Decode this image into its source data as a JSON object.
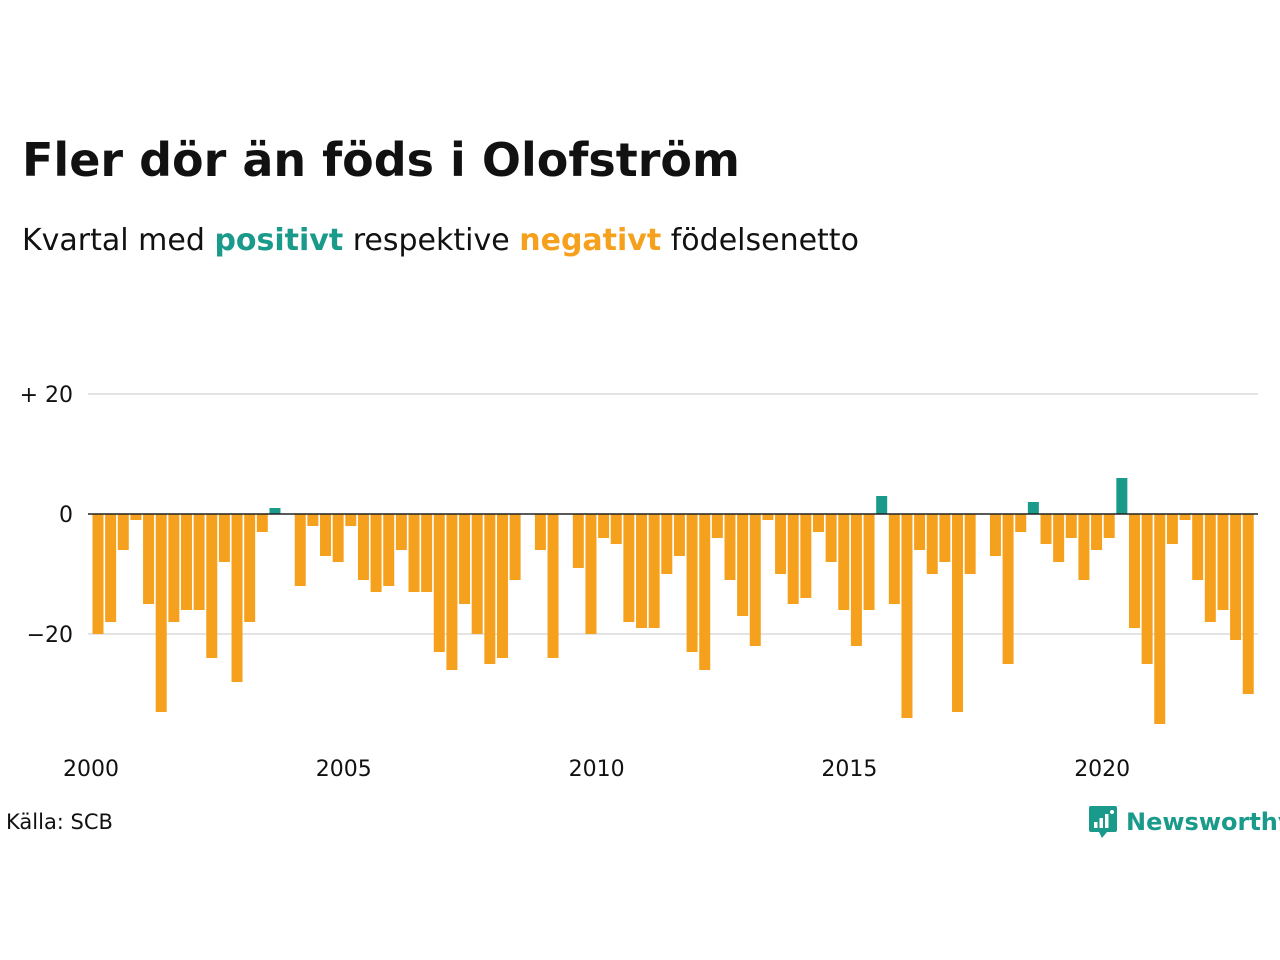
{
  "header": {
    "title": "Fler dör än föds i Olofström",
    "subtitle_prefix": "Kvartal med",
    "subtitle_positive": "positivt",
    "subtitle_mid": "respektive",
    "subtitle_negative": "negativt",
    "subtitle_suffix": "födelsenetto"
  },
  "footer": {
    "source": "Källa: SCB",
    "brand": "Newsworthy",
    "brand_icon": "bar-chart-speech-bubble-icon"
  },
  "colors": {
    "positive": "#1a9a8a",
    "negative": "#f6a11e",
    "text": "#111111",
    "grid": "#e4e4e4",
    "zero_line": "#222222"
  },
  "chart_data": {
    "type": "bar",
    "title": "Fler dör än föds i Olofström",
    "subtitle": "Kvartal med positivt respektive negativt födelsenetto",
    "x_start": "2000-Q1",
    "frequency": "quarterly",
    "x_ticks": [
      "2000",
      "2005",
      "2010",
      "2015",
      "2020"
    ],
    "y_ticks": [
      {
        "value": 20,
        "label": "+ 20"
      },
      {
        "value": 0,
        "label": "0"
      },
      {
        "value": -20,
        "label": "−20"
      }
    ],
    "ylim": [
      -36,
      20
    ],
    "grid": true,
    "series": [
      {
        "values": [
          -20,
          -18,
          -6,
          -1,
          -15,
          -33,
          -18,
          -16,
          -16,
          -24,
          -8,
          -28,
          -18,
          -3,
          1,
          0,
          -12,
          -2,
          -7,
          -8,
          -2,
          -11,
          -13,
          -12,
          -6,
          -13,
          -13,
          -23,
          -26,
          -15,
          -20,
          -25,
          -24,
          -11,
          0,
          -6,
          -24,
          0,
          -9,
          -20,
          -4,
          -5,
          -18,
          -19,
          -19,
          -10,
          -7,
          -23,
          -26,
          -4,
          -11,
          -17,
          -22,
          -1,
          -10,
          -15,
          -14,
          -3,
          -8,
          -16,
          -22,
          -16,
          3,
          -15,
          -34,
          -6,
          -10,
          -8,
          -33,
          -10,
          0,
          -7,
          -25,
          -3,
          2,
          -5,
          -8,
          -4,
          -11,
          -6,
          -4,
          6,
          -19,
          -25,
          -35,
          -5,
          -1,
          -11,
          -18,
          -16,
          -21,
          -30
        ]
      }
    ]
  }
}
